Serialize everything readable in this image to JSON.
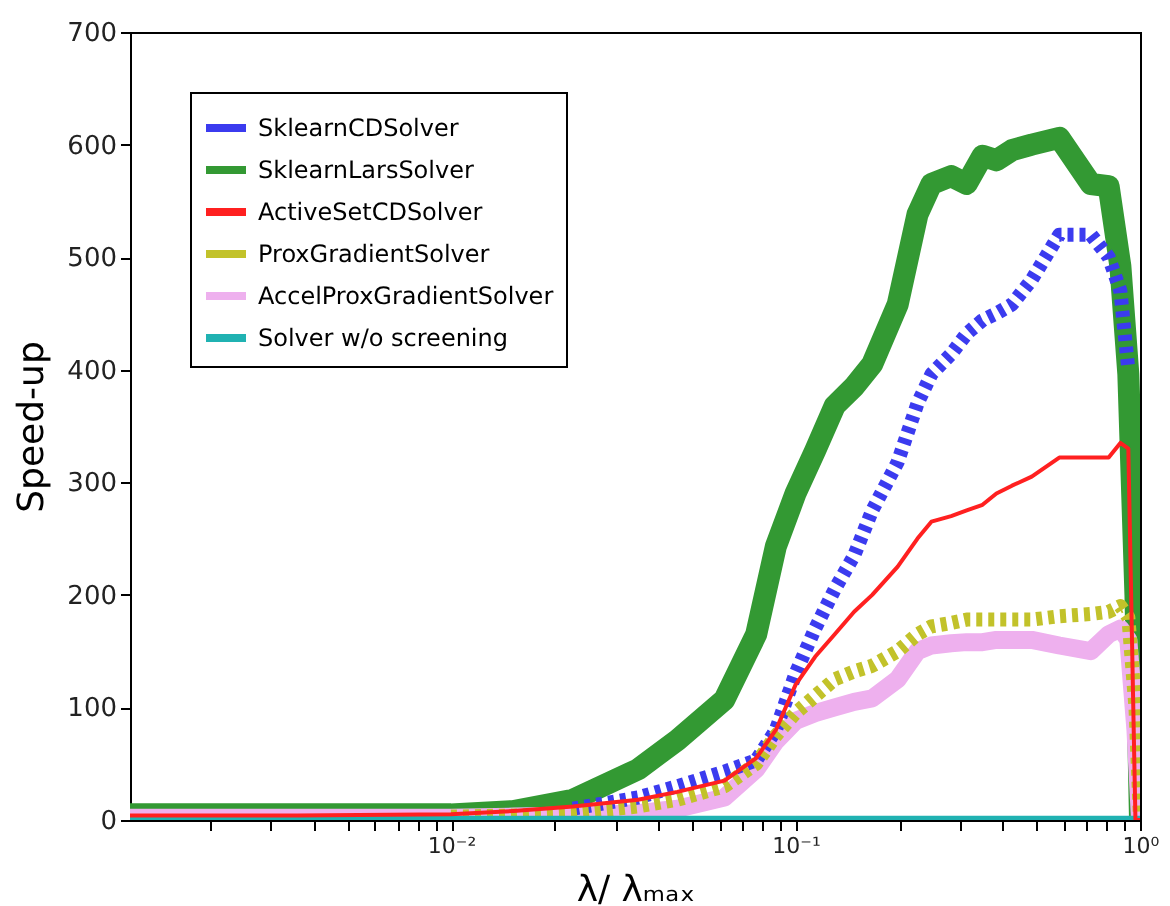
{
  "chart_data": {
    "type": "line",
    "xlabel": "λ/ λₘₐₓ",
    "ylabel": "Speed-up",
    "log": "x",
    "xlim": [
      0.00117,
      1
    ],
    "ylim": [
      0,
      700
    ],
    "xticks": [
      {
        "value": 0.002,
        "label": null
      },
      {
        "value": 0.003,
        "label": null
      },
      {
        "value": 0.004,
        "label": null
      },
      {
        "value": 0.005,
        "label": null
      },
      {
        "value": 0.006,
        "label": null
      },
      {
        "value": 0.007,
        "label": null
      },
      {
        "value": 0.008,
        "label": null
      },
      {
        "value": 0.009,
        "label": null
      },
      {
        "value": 0.01,
        "label": "10⁻²"
      },
      {
        "value": 0.02,
        "label": null
      },
      {
        "value": 0.03,
        "label": null
      },
      {
        "value": 0.04,
        "label": null
      },
      {
        "value": 0.05,
        "label": null
      },
      {
        "value": 0.06,
        "label": null
      },
      {
        "value": 0.07,
        "label": null
      },
      {
        "value": 0.08,
        "label": null
      },
      {
        "value": 0.09,
        "label": null
      },
      {
        "value": 0.1,
        "label": "10⁻¹"
      },
      {
        "value": 0.2,
        "label": null
      },
      {
        "value": 0.3,
        "label": null
      },
      {
        "value": 0.4,
        "label": null
      },
      {
        "value": 0.5,
        "label": null
      },
      {
        "value": 0.6,
        "label": null
      },
      {
        "value": 0.7,
        "label": null
      },
      {
        "value": 0.8,
        "label": null
      },
      {
        "value": 0.9,
        "label": null
      },
      {
        "value": 1,
        "label": "10⁰"
      }
    ],
    "yticks": [
      0,
      100,
      200,
      300,
      400,
      500,
      600,
      700
    ],
    "grid": false,
    "legend": "top left",
    "marker": "none",
    "x": [
      0.00117,
      0.00358,
      0.01,
      0.0152,
      0.0226,
      0.0349,
      0.0454,
      0.0622,
      0.0769,
      0.0877,
      0.1,
      0.114,
      0.13,
      0.148,
      0.167,
      0.198,
      0.226,
      0.248,
      0.283,
      0.314,
      0.349,
      0.383,
      0.425,
      0.485,
      0.583,
      0.72,
      0.811,
      0.877,
      0.925,
      0.97,
      1.0
    ],
    "series": [
      {
        "name": "SklearnCDSolver",
        "color": "#3b3bef",
        "line_style": "dotted",
        "values": [
          null,
          null,
          null,
          null,
          10,
          20,
          30,
          43,
          53,
          80,
          130,
          170,
          205,
          235,
          275,
          318,
          370,
          396,
          414,
          432,
          444,
          450,
          458,
          480,
          520,
          520,
          500,
          470,
          400,
          null,
          null
        ]
      },
      {
        "name": "SklearnLarsSolver",
        "color": "#339933",
        "line_style": "solid",
        "values": [
          5,
          5,
          5,
          8,
          18,
          45,
          71,
          107,
          165,
          243,
          290,
          328,
          368,
          385,
          405,
          458,
          538,
          565,
          572,
          565,
          590,
          586,
          595,
          600,
          606,
          565,
          563,
          492,
          396,
          200,
          0
        ]
      },
      {
        "name": "ActiveSetCDSolver",
        "color": "#ff2020",
        "line_style": "solid",
        "values": [
          4,
          4,
          5,
          8,
          12,
          18,
          25,
          35,
          55,
          80,
          120,
          145,
          165,
          185,
          200,
          225,
          250,
          265,
          270,
          275,
          280,
          290,
          297,
          305,
          322,
          322,
          322,
          335,
          330,
          0,
          0
        ]
      },
      {
        "name": "ProxGradientSolver",
        "color": "#c2c22a",
        "line_style": "dotted",
        "values": [
          null,
          null,
          3,
          4,
          6,
          12,
          18,
          30,
          50,
          75,
          95,
          110,
          125,
          132,
          137,
          150,
          165,
          172,
          175,
          178,
          178,
          178,
          178,
          178,
          181,
          183,
          185,
          190,
          180,
          100,
          0
        ]
      },
      {
        "name": "AccelProxGradientSolver",
        "color": "#eeb0ee",
        "line_style": "solid",
        "values": [
          2,
          2,
          2,
          3,
          4,
          6,
          10,
          20,
          45,
          70,
          88,
          95,
          100,
          105,
          108,
          125,
          150,
          155,
          157,
          158,
          158,
          160,
          160,
          160,
          155,
          150,
          165,
          170,
          160,
          80,
          0
        ]
      },
      {
        "name": "Solver w/o screening",
        "color": "#20b2b2",
        "line_style": "solid",
        "values": [
          1,
          1,
          1,
          1,
          1,
          1,
          1,
          1,
          1,
          1,
          1,
          1,
          1,
          1,
          1,
          1,
          1,
          1,
          1,
          1,
          1,
          1,
          1,
          1,
          1,
          1,
          1,
          1,
          1,
          1,
          1
        ]
      }
    ]
  }
}
